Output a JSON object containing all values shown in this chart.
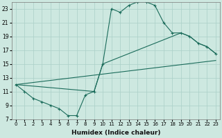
{
  "xlabel": "Humidex (Indice chaleur)",
  "background_color": "#cde8e0",
  "grid_color": "#aacfc7",
  "line_color": "#1a6b5a",
  "xlim": [
    -0.5,
    23.5
  ],
  "ylim": [
    7,
    24
  ],
  "xticks": [
    0,
    1,
    2,
    3,
    4,
    5,
    6,
    7,
    8,
    9,
    10,
    11,
    12,
    13,
    14,
    15,
    16,
    17,
    18,
    19,
    20,
    21,
    22,
    23
  ],
  "yticks": [
    7,
    9,
    11,
    13,
    15,
    17,
    19,
    21,
    23
  ],
  "line1_x": [
    0,
    1,
    2,
    3,
    4,
    5,
    6,
    7,
    8,
    9,
    10,
    11,
    12,
    13,
    14,
    15,
    16,
    17,
    18,
    19,
    20,
    21,
    22,
    23
  ],
  "line1_y": [
    12,
    11,
    10,
    9.5,
    9,
    8.5,
    7.5,
    7.5,
    10.5,
    11,
    15,
    23,
    22.5,
    23.5,
    24,
    24,
    23.5,
    21,
    19.5,
    19.5,
    19,
    18,
    17.5,
    16.5
  ],
  "line2_x": [
    0,
    23
  ],
  "line2_y": [
    12,
    15.5
  ],
  "line3_x": [
    0,
    9,
    10,
    19,
    20,
    21,
    22,
    23
  ],
  "line3_y": [
    12,
    11,
    15,
    19.5,
    19,
    18,
    17.5,
    16.5
  ]
}
